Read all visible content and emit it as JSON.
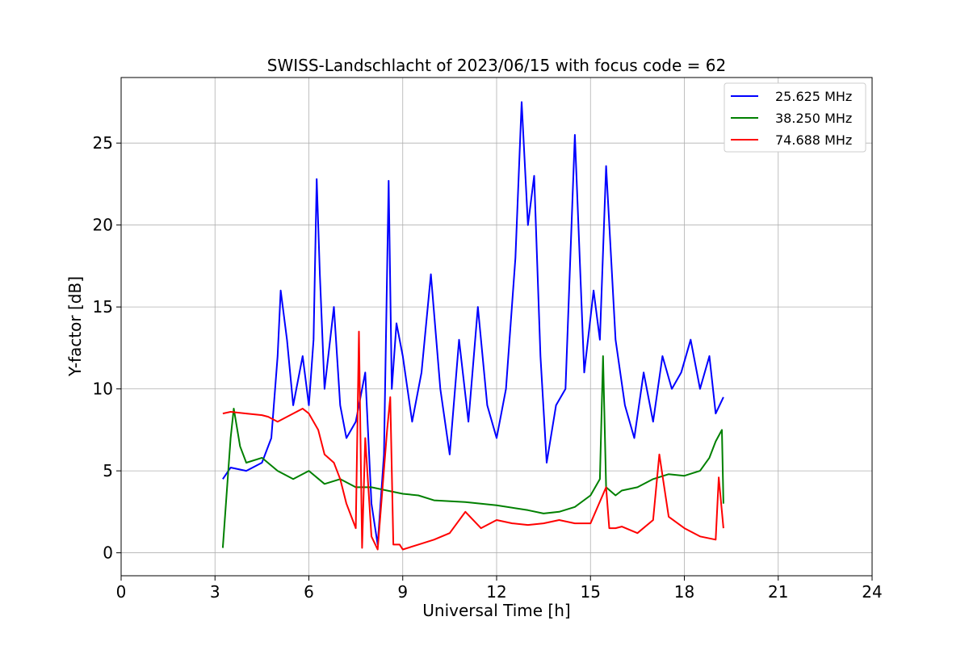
{
  "chart_data": {
    "type": "line",
    "title": "SWISS-Landschlacht of 2023/06/15 with focus code = 62",
    "xlabel": "Universal Time [h]",
    "ylabel": "Y-factor [dB]",
    "xlim": [
      0,
      24
    ],
    "ylim": [
      -1.4,
      29
    ],
    "xticks": [
      0,
      3,
      6,
      9,
      12,
      15,
      18,
      21,
      24
    ],
    "yticks": [
      0,
      5,
      10,
      15,
      20,
      25
    ],
    "grid": true,
    "legend_position": "top-right",
    "series": [
      {
        "name": "25.625 MHz",
        "color": "#0000ff",
        "x": [
          3.25,
          3.5,
          4.0,
          4.5,
          4.8,
          5.0,
          5.1,
          5.3,
          5.5,
          5.8,
          6.0,
          6.15,
          6.25,
          6.35,
          6.5,
          6.8,
          7.0,
          7.2,
          7.5,
          7.8,
          8.0,
          8.2,
          8.4,
          8.55,
          8.65,
          8.8,
          9.0,
          9.3,
          9.6,
          9.9,
          10.2,
          10.5,
          10.8,
          11.1,
          11.4,
          11.7,
          12.0,
          12.3,
          12.6,
          12.8,
          13.0,
          13.2,
          13.4,
          13.6,
          13.9,
          14.2,
          14.5,
          14.8,
          15.1,
          15.3,
          15.5,
          15.8,
          16.1,
          16.4,
          16.7,
          17.0,
          17.3,
          17.6,
          17.9,
          18.2,
          18.5,
          18.8,
          19.0,
          19.25
        ],
        "y": [
          4.5,
          5.2,
          5.0,
          5.5,
          7.0,
          12.0,
          16.0,
          13.0,
          9.0,
          12.0,
          9.0,
          13.0,
          22.8,
          17.0,
          10.0,
          15.0,
          9.0,
          7.0,
          8.0,
          11.0,
          3.0,
          0.5,
          6.0,
          22.7,
          10.0,
          14.0,
          12.0,
          8.0,
          11.0,
          17.0,
          10.0,
          6.0,
          13.0,
          8.0,
          15.0,
          9.0,
          7.0,
          10.0,
          18.0,
          27.5,
          20.0,
          23.0,
          12.0,
          5.5,
          9.0,
          10.0,
          25.5,
          11.0,
          16.0,
          13.0,
          23.6,
          13.0,
          9.0,
          7.0,
          11.0,
          8.0,
          12.0,
          10.0,
          11.0,
          13.0,
          10.0,
          12.0,
          8.5,
          9.5
        ]
      },
      {
        "name": "38.250 MHz",
        "color": "#008000",
        "x": [
          3.25,
          3.35,
          3.5,
          3.6,
          3.8,
          4.0,
          4.5,
          5.0,
          5.5,
          6.0,
          6.5,
          7.0,
          7.5,
          8.0,
          8.5,
          9.0,
          9.5,
          10.0,
          11.0,
          12.0,
          13.0,
          13.5,
          14.0,
          14.5,
          15.0,
          15.3,
          15.4,
          15.5,
          15.8,
          16.0,
          16.5,
          17.0,
          17.5,
          18.0,
          18.5,
          18.8,
          19.0,
          19.2,
          19.25
        ],
        "y": [
          0.3,
          3.0,
          7.0,
          8.8,
          6.5,
          5.5,
          5.8,
          5.0,
          4.5,
          5.0,
          4.2,
          4.5,
          4.0,
          4.0,
          3.8,
          3.6,
          3.5,
          3.2,
          3.1,
          2.9,
          2.6,
          2.4,
          2.5,
          2.8,
          3.5,
          4.5,
          12.0,
          4.0,
          3.5,
          3.8,
          4.0,
          4.5,
          4.8,
          4.7,
          5.0,
          5.8,
          6.8,
          7.5,
          3.0
        ]
      },
      {
        "name": "74.688 MHz",
        "color": "#ff0000",
        "x": [
          3.25,
          3.5,
          4.0,
          4.5,
          4.7,
          5.0,
          5.5,
          5.8,
          6.0,
          6.3,
          6.5,
          6.8,
          7.0,
          7.2,
          7.5,
          7.6,
          7.7,
          7.8,
          8.0,
          8.2,
          8.5,
          8.6,
          8.7,
          8.9,
          9.0,
          9.5,
          10.0,
          10.5,
          11.0,
          11.5,
          12.0,
          12.5,
          13.0,
          13.5,
          14.0,
          14.5,
          15.0,
          15.5,
          15.6,
          15.8,
          16.0,
          16.5,
          17.0,
          17.2,
          17.5,
          18.0,
          18.5,
          19.0,
          19.1,
          19.25
        ],
        "y": [
          8.5,
          8.6,
          8.5,
          8.4,
          8.3,
          8.0,
          8.5,
          8.8,
          8.5,
          7.5,
          6.0,
          5.5,
          4.5,
          3.0,
          1.5,
          13.5,
          0.3,
          7.0,
          1.0,
          0.2,
          7.5,
          9.5,
          0.5,
          0.5,
          0.2,
          0.5,
          0.8,
          1.2,
          2.5,
          1.5,
          2.0,
          1.8,
          1.7,
          1.8,
          2.0,
          1.8,
          1.8,
          4.0,
          1.5,
          1.5,
          1.6,
          1.2,
          2.0,
          6.0,
          2.2,
          1.5,
          1.0,
          0.8,
          4.6,
          1.5
        ]
      }
    ]
  }
}
